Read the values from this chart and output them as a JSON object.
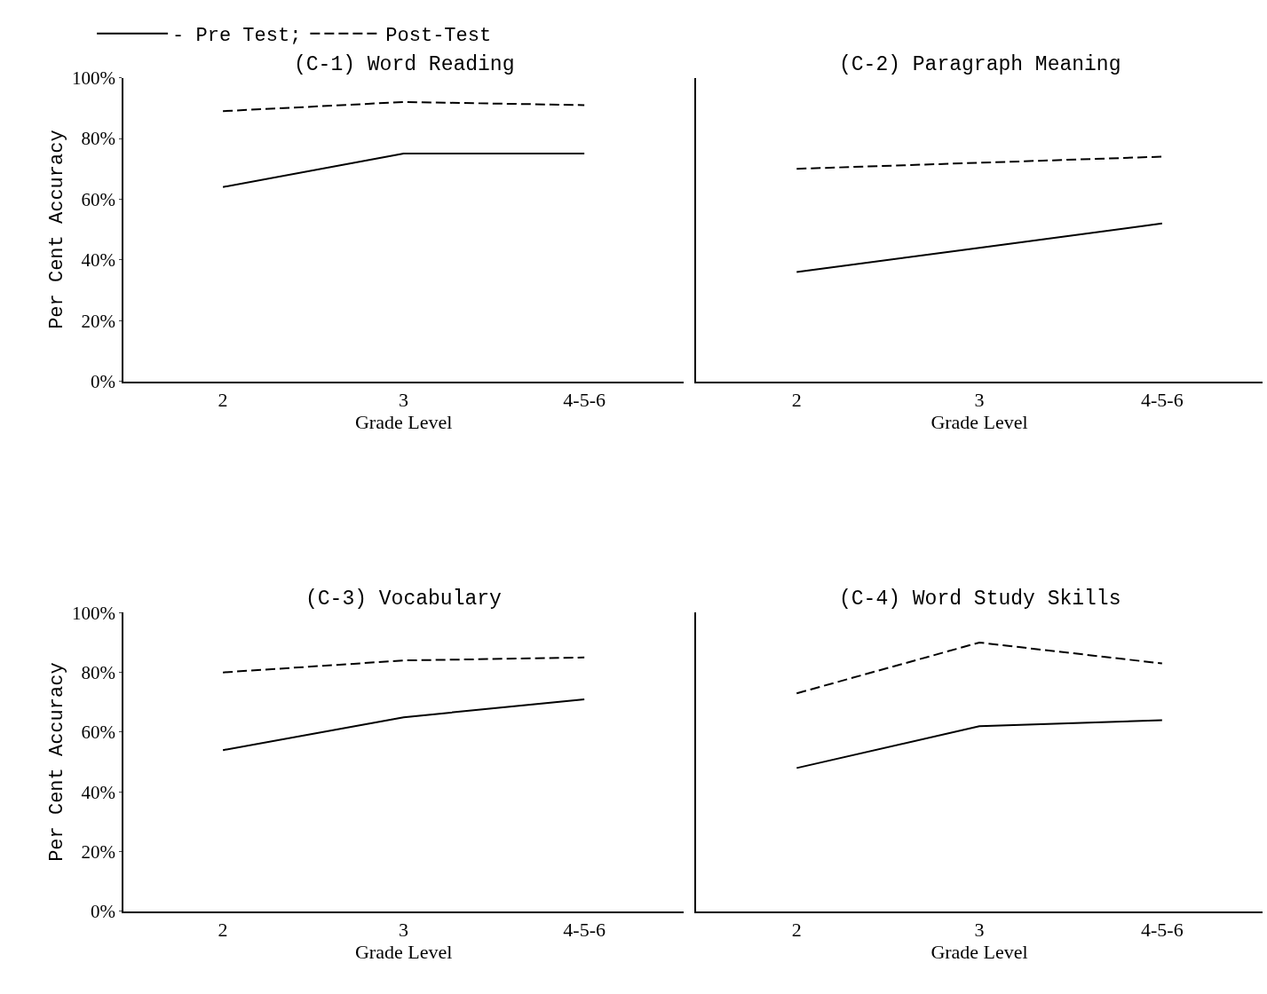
{
  "chart_data": [
    {
      "type": "line",
      "title": "(C-1) Word Reading",
      "xlabel": "Grade Level",
      "ylabel": "Per Cent Accuracy",
      "categories": [
        "2",
        "3",
        "4-5-6"
      ],
      "legend": "top left",
      "ylim": [
        0,
        100
      ],
      "yticks": [
        {
          "value": 0,
          "label": "0%"
        },
        {
          "value": 20,
          "label": "20%"
        },
        {
          "value": 40,
          "label": "40%"
        },
        {
          "value": 60,
          "label": "60%"
        },
        {
          "value": 80,
          "label": "80%"
        },
        {
          "value": 100,
          "label": "100%"
        }
      ],
      "series": [
        {
          "name": "- Pre Test;",
          "color": "#000000",
          "line_style": "solid",
          "values": [
            64,
            75,
            75
          ]
        },
        {
          "name": "Post-Test",
          "color": "#000000",
          "line_style": "dashed",
          "values": [
            89,
            92,
            91
          ]
        }
      ]
    },
    {
      "type": "line",
      "title": "(C-2) Paragraph Meaning",
      "xlabel": "Grade Level",
      "categories": [
        "2",
        "3",
        "4-5-6"
      ],
      "tick_labels": "x",
      "ylim": [
        0,
        100
      ],
      "series": [
        {
          "color": "#000000",
          "line_style": "solid",
          "values": [
            36,
            44,
            52
          ]
        },
        {
          "color": "#000000",
          "line_style": "dashed",
          "values": [
            70,
            72,
            74
          ]
        }
      ]
    },
    {
      "type": "line",
      "title": "(C-3) Vocabulary",
      "xlabel": "Grade Level",
      "ylabel": "Per Cent Accuracy",
      "categories": [
        "2",
        "3",
        "4-5-6"
      ],
      "ylim": [
        0,
        100
      ],
      "yticks": [
        {
          "value": 0,
          "label": "0%"
        },
        {
          "value": 20,
          "label": "20%"
        },
        {
          "value": 40,
          "label": "40%"
        },
        {
          "value": 60,
          "label": "60%"
        },
        {
          "value": 80,
          "label": "80%"
        },
        {
          "value": 100,
          "label": "100%"
        }
      ],
      "series": [
        {
          "color": "#000000",
          "line_style": "solid",
          "values": [
            54,
            65,
            71
          ]
        },
        {
          "color": "#000000",
          "line_style": "dashed",
          "values": [
            80,
            84,
            85
          ]
        }
      ]
    },
    {
      "type": "line",
      "title": "(C-4) Word Study Skills",
      "xlabel": "Grade Level",
      "categories": [
        "2",
        "3",
        "4-5-6"
      ],
      "tick_labels": "x",
      "ylim": [
        0,
        100
      ],
      "series": [
        {
          "color": "#000000",
          "line_style": "solid",
          "values": [
            48,
            62,
            64
          ]
        },
        {
          "color": "#000000",
          "line_style": "dashed",
          "values": [
            73,
            90,
            83
          ]
        }
      ]
    }
  ]
}
